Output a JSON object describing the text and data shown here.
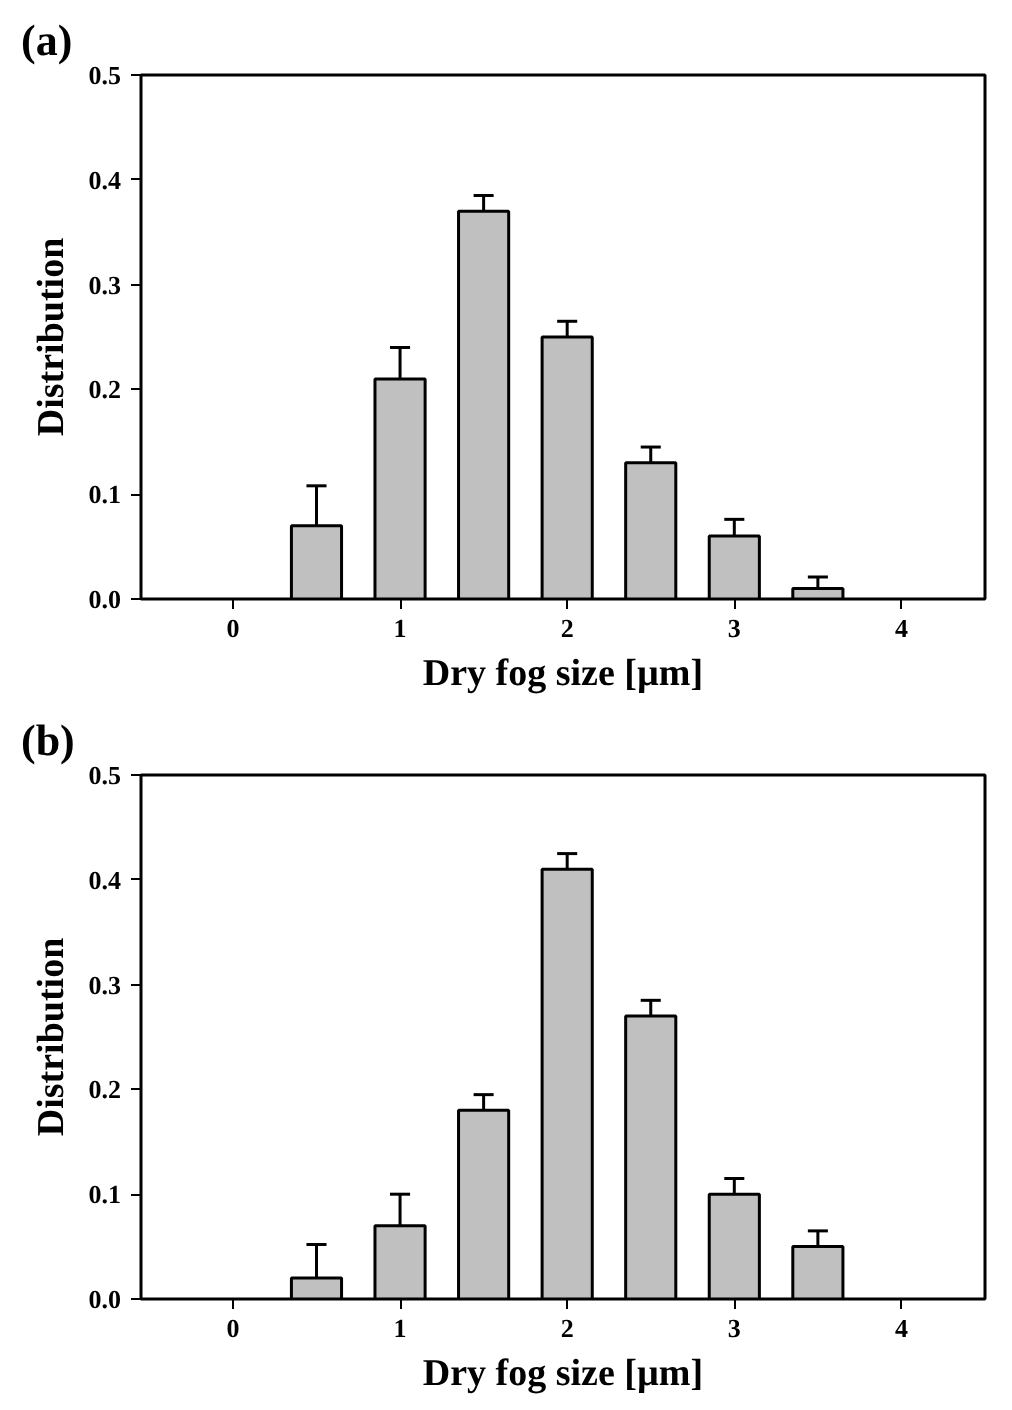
{
  "chart_data": [
    {
      "type": "bar",
      "title": "(a)",
      "xlabel": "Dry fog size [µm]",
      "ylabel": "Distribution",
      "x": [
        0.5,
        1,
        1.5,
        2,
        2.5,
        3,
        3.5
      ],
      "values": [
        0.07,
        0.21,
        0.37,
        0.25,
        0.13,
        0.06,
        0.01
      ],
      "errors": [
        [
          0.07,
          0.108
        ],
        [
          0.21,
          0.24
        ],
        [
          0.37,
          0.385
        ],
        [
          0.25,
          0.265
        ],
        [
          0.13,
          0.145
        ],
        [
          0.06,
          0.076
        ],
        [
          0.01,
          0.021
        ]
      ],
      "color": "#c0c0c0",
      "xlim": [
        -0.55,
        4.5
      ],
      "xticks": [
        0,
        1,
        2,
        3,
        4
      ],
      "ylim": [
        0,
        0.5
      ],
      "yticks": [
        "0.0",
        0.1,
        0.2,
        0.3,
        0.4,
        0.5
      ],
      "grid": false
    },
    {
      "type": "bar",
      "title": "(b)",
      "xlabel": "Dry fog size [µm]",
      "ylabel": "Distribution",
      "x": [
        0.5,
        1,
        1.5,
        2,
        2.5,
        3,
        3.5
      ],
      "values": [
        0.02,
        0.07,
        0.18,
        0.41,
        0.27,
        0.1,
        0.05
      ],
      "errors": [
        [
          0.02,
          0.052
        ],
        [
          0.07,
          0.1
        ],
        [
          0.18,
          0.195
        ],
        [
          0.41,
          0.425
        ],
        [
          0.27,
          0.285
        ],
        [
          0.1,
          0.115
        ],
        [
          0.05,
          0.065
        ]
      ],
      "color": "#c0c0c0",
      "xlim": [
        -0.55,
        4.5
      ],
      "xticks": [
        0,
        1,
        2,
        3,
        4
      ],
      "ylim": [
        0,
        0.5
      ],
      "yticks": [
        "0.0",
        0.1,
        0.2,
        0.3,
        0.4,
        0.5
      ],
      "grid": false
    }
  ]
}
